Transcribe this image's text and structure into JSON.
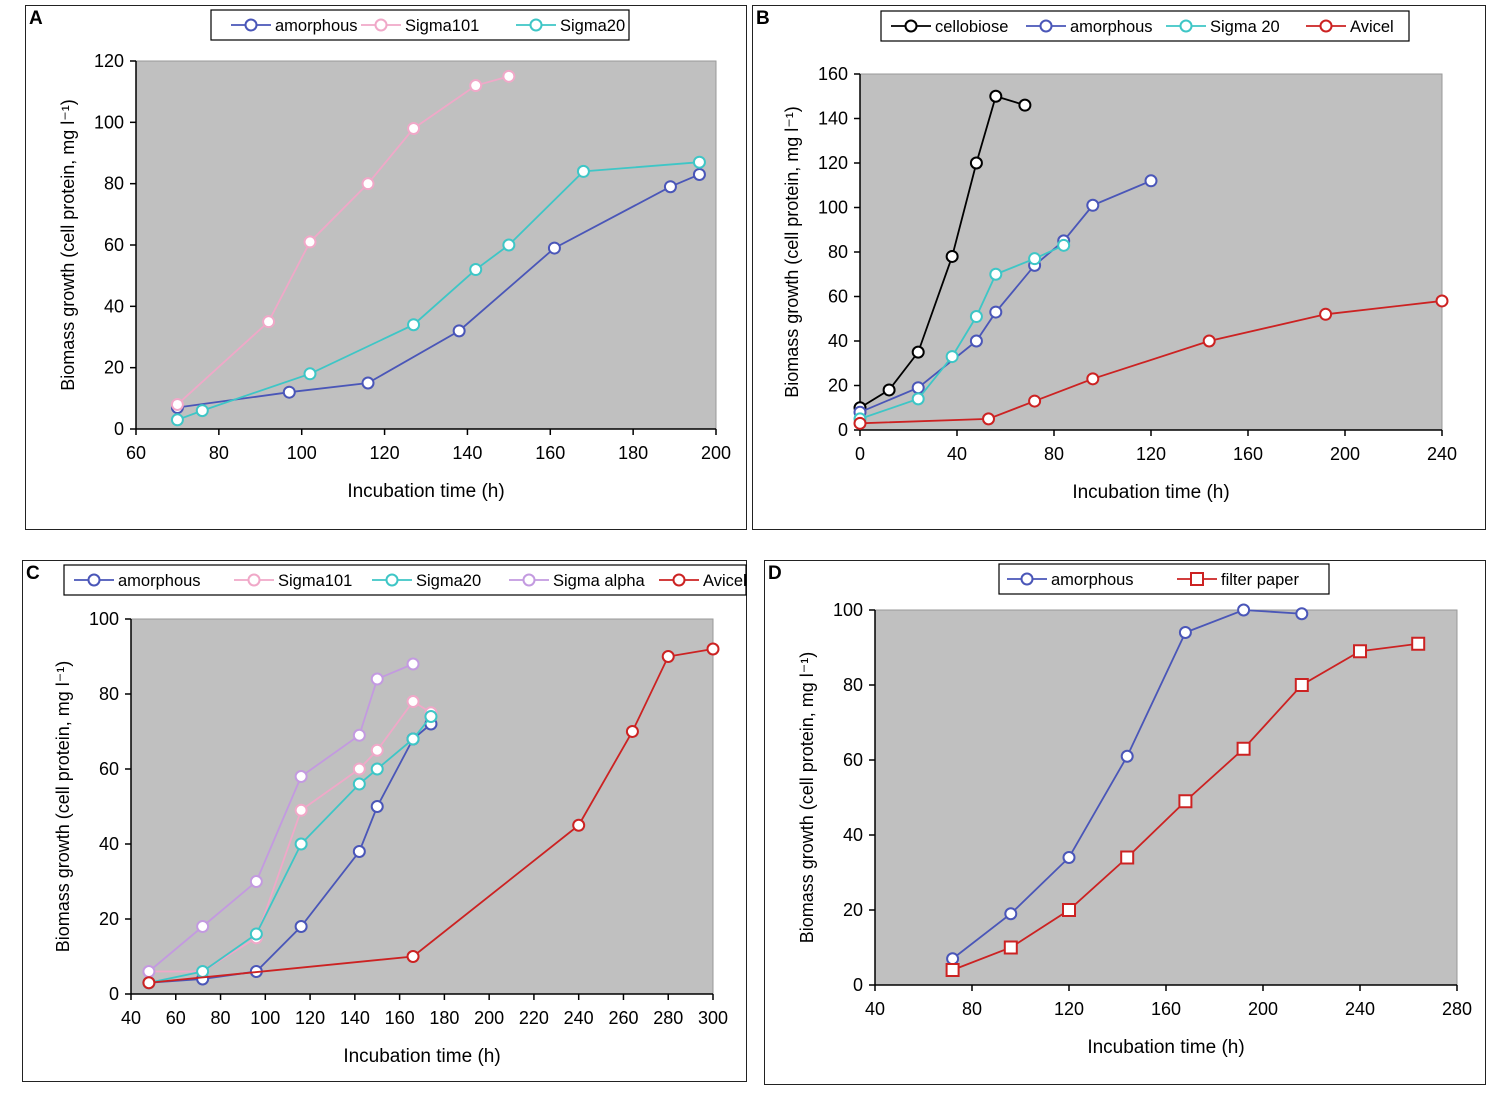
{
  "figure": {
    "panels": [
      "A",
      "B",
      "C",
      "D"
    ],
    "colors": {
      "plot_bg": "#c0c0c0",
      "amorphous": "#4a56b8",
      "sigma101": "#f0a8c8",
      "sigma20": "#3ec6c6",
      "sigma_alpha": "#c39ae0",
      "avicel": "#cc2222",
      "cellobiose": "#000000",
      "filter_paper": "#cc2222"
    }
  },
  "chart_data": [
    {
      "panel": "A",
      "type": "line",
      "xlabel": "Incubation time (h)",
      "ylabel": "Biomass growth (cell protein, mg l⁻¹)",
      "xlim": [
        60,
        200
      ],
      "ylim": [
        0,
        120
      ],
      "xticks": [
        60,
        80,
        100,
        120,
        140,
        160,
        180,
        200
      ],
      "yticks": [
        0,
        20,
        40,
        60,
        80,
        100,
        120
      ],
      "legend": "top",
      "series": [
        {
          "name": "amorphous",
          "color": "#4a56b8",
          "marker": "circle",
          "x": [
            70,
            97,
            116,
            138,
            161,
            189,
            196
          ],
          "y": [
            7,
            12,
            15,
            32,
            59,
            79,
            83
          ]
        },
        {
          "name": "Sigma101",
          "color": "#f0a8c8",
          "marker": "circle",
          "x": [
            70,
            92,
            102,
            116,
            127,
            142,
            150
          ],
          "y": [
            8,
            35,
            61,
            80,
            98,
            112,
            115
          ]
        },
        {
          "name": "Sigma20",
          "color": "#3ec6c6",
          "marker": "circle",
          "x": [
            70,
            76,
            102,
            127,
            142,
            150,
            168,
            196
          ],
          "y": [
            3,
            6,
            18,
            34,
            52,
            60,
            84,
            87
          ]
        }
      ]
    },
    {
      "panel": "B",
      "type": "line",
      "xlabel": "Incubation time (h)",
      "ylabel": "Biomass growth (cell protein, mg l⁻¹)",
      "xlim": [
        0,
        240
      ],
      "ylim": [
        0,
        160
      ],
      "xticks": [
        0,
        40,
        80,
        120,
        160,
        200,
        240
      ],
      "yticks": [
        0,
        20,
        40,
        60,
        80,
        100,
        120,
        140,
        160
      ],
      "legend": "top",
      "series": [
        {
          "name": "cellobiose",
          "color": "#000000",
          "marker": "circle",
          "x": [
            0,
            12,
            24,
            38,
            48,
            56,
            68
          ],
          "y": [
            10,
            18,
            35,
            78,
            120,
            150,
            146
          ]
        },
        {
          "name": "amorphous",
          "color": "#4a56b8",
          "marker": "circle",
          "x": [
            0,
            24,
            48,
            56,
            72,
            84,
            96,
            120
          ],
          "y": [
            8,
            19,
            40,
            53,
            74,
            85,
            101,
            112
          ]
        },
        {
          "name": "Sigma 20",
          "color": "#3ec6c6",
          "marker": "circle",
          "x": [
            0,
            24,
            38,
            48,
            56,
            72,
            84
          ],
          "y": [
            5,
            14,
            33,
            51,
            70,
            77,
            83
          ]
        },
        {
          "name": "Avicel",
          "color": "#cc2222",
          "marker": "circle",
          "x": [
            0,
            53,
            72,
            96,
            144,
            192,
            240
          ],
          "y": [
            3,
            5,
            13,
            23,
            40,
            52,
            58
          ]
        }
      ]
    },
    {
      "panel": "C",
      "type": "line",
      "xlabel": "Incubation time (h)",
      "ylabel": "Biomass growth (cell protein, mg l⁻¹)",
      "xlim": [
        40,
        300
      ],
      "ylim": [
        0,
        100
      ],
      "xticks": [
        40,
        60,
        80,
        100,
        120,
        140,
        160,
        180,
        200,
        220,
        240,
        260,
        280,
        300
      ],
      "yticks": [
        0,
        20,
        40,
        60,
        80,
        100
      ],
      "legend": "top",
      "series": [
        {
          "name": "amorphous",
          "color": "#4a56b8",
          "marker": "circle",
          "x": [
            48,
            72,
            96,
            116,
            142,
            150,
            166,
            174
          ],
          "y": [
            3,
            4,
            6,
            18,
            38,
            50,
            68,
            72
          ]
        },
        {
          "name": "Sigma101",
          "color": "#f0a8c8",
          "marker": "circle",
          "x": [
            48,
            72,
            96,
            116,
            142,
            150,
            166,
            174
          ],
          "y": [
            6,
            6,
            15,
            49,
            60,
            65,
            78,
            75
          ]
        },
        {
          "name": "Sigma20",
          "color": "#3ec6c6",
          "marker": "circle",
          "x": [
            48,
            72,
            96,
            116,
            142,
            150,
            166,
            174
          ],
          "y": [
            3,
            6,
            16,
            40,
            56,
            60,
            68,
            74
          ]
        },
        {
          "name": "Sigma alpha",
          "color": "#c39ae0",
          "marker": "circle",
          "x": [
            48,
            72,
            96,
            116,
            142,
            150,
            166
          ],
          "y": [
            6,
            18,
            30,
            58,
            69,
            84,
            88
          ]
        },
        {
          "name": "Avicel",
          "color": "#cc2222",
          "marker": "circle",
          "x": [
            48,
            166,
            240,
            264,
            280,
            300
          ],
          "y": [
            3,
            10,
            45,
            70,
            90,
            92
          ]
        }
      ]
    },
    {
      "panel": "D",
      "type": "line",
      "xlabel": "Incubation time (h)",
      "ylabel": "Biomass growth (cell protein, mg l⁻¹)",
      "xlim": [
        40,
        280
      ],
      "ylim": [
        0,
        100
      ],
      "xticks": [
        40,
        80,
        120,
        160,
        200,
        240,
        280
      ],
      "yticks": [
        0,
        20,
        40,
        60,
        80,
        100
      ],
      "legend": "top",
      "series": [
        {
          "name": "amorphous",
          "color": "#4a56b8",
          "marker": "circle",
          "x": [
            72,
            96,
            120,
            144,
            168,
            192,
            216
          ],
          "y": [
            7,
            19,
            34,
            61,
            94,
            100,
            99
          ]
        },
        {
          "name": "filter paper",
          "color": "#cc2222",
          "marker": "square",
          "x": [
            72,
            96,
            120,
            144,
            168,
            192,
            216,
            240,
            264
          ],
          "y": [
            4,
            10,
            20,
            34,
            49,
            63,
            80,
            89,
            91
          ]
        }
      ]
    }
  ]
}
